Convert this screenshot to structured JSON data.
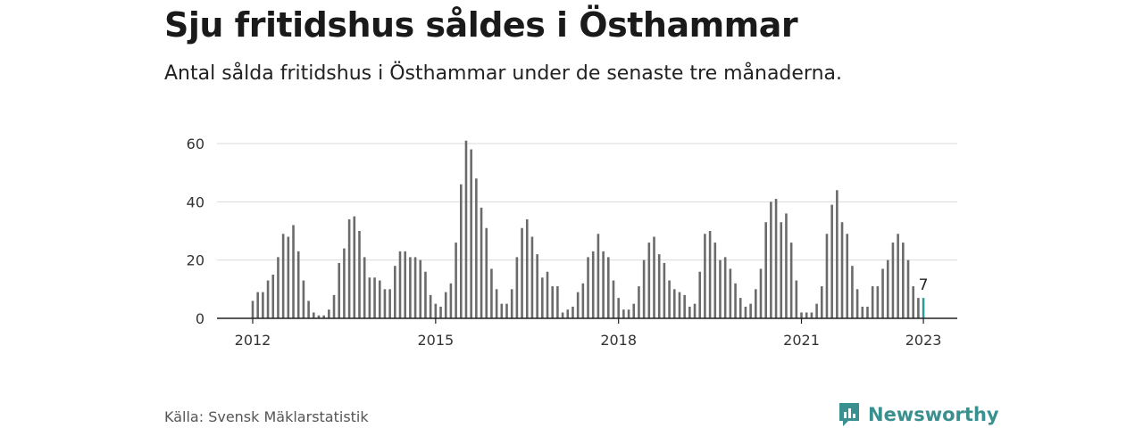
{
  "title": "Sju fritidshus såldes i Östhammar",
  "subtitle": "Antal sålda fritidshus i Östhammar under de senaste tre månaderna.",
  "source": "Källa: Svensk Mäklarstatistik",
  "brand": {
    "name": "Newsworthy",
    "icon": "newsworthy-logo-icon",
    "color": "#3a8f8f"
  },
  "colors": {
    "bar": "#6b6b6b",
    "highlight": "#2a9d9d",
    "grid": "#d9d9d9",
    "axis": "#222222"
  },
  "chart_data": {
    "type": "bar",
    "ylim": [
      0,
      60
    ],
    "yticks": [
      0,
      20,
      40,
      60
    ],
    "xticks": [
      {
        "label": "2012",
        "index": 0
      },
      {
        "label": "2015",
        "index": 36
      },
      {
        "label": "2018",
        "index": 72
      },
      {
        "label": "2021",
        "index": 108
      },
      {
        "label": "2023",
        "index": 132
      }
    ],
    "start": "2012-01",
    "end": "2023-01",
    "values": [
      6,
      9,
      9,
      13,
      15,
      21,
      29,
      28,
      32,
      23,
      13,
      6,
      2,
      1,
      1,
      3,
      8,
      19,
      24,
      34,
      35,
      30,
      21,
      14,
      14,
      13,
      10,
      10,
      18,
      23,
      23,
      21,
      21,
      20,
      16,
      8,
      5,
      4,
      9,
      12,
      26,
      46,
      61,
      58,
      48,
      38,
      31,
      17,
      10,
      5,
      5,
      10,
      21,
      31,
      34,
      28,
      22,
      14,
      16,
      11,
      11,
      2,
      3,
      4,
      9,
      12,
      21,
      23,
      29,
      23,
      21,
      13,
      7,
      3,
      3,
      5,
      11,
      20,
      26,
      28,
      22,
      19,
      13,
      10,
      9,
      8,
      4,
      5,
      16,
      29,
      30,
      26,
      20,
      21,
      17,
      12,
      7,
      4,
      5,
      10,
      17,
      33,
      40,
      41,
      33,
      36,
      26,
      13,
      2,
      2,
      2,
      5,
      11,
      29,
      39,
      44,
      33,
      29,
      18,
      10,
      4,
      4,
      11,
      11,
      17,
      20,
      26,
      29,
      26,
      20,
      11,
      7,
      7
    ],
    "highlight_index": 132,
    "highlight_label": "7"
  }
}
